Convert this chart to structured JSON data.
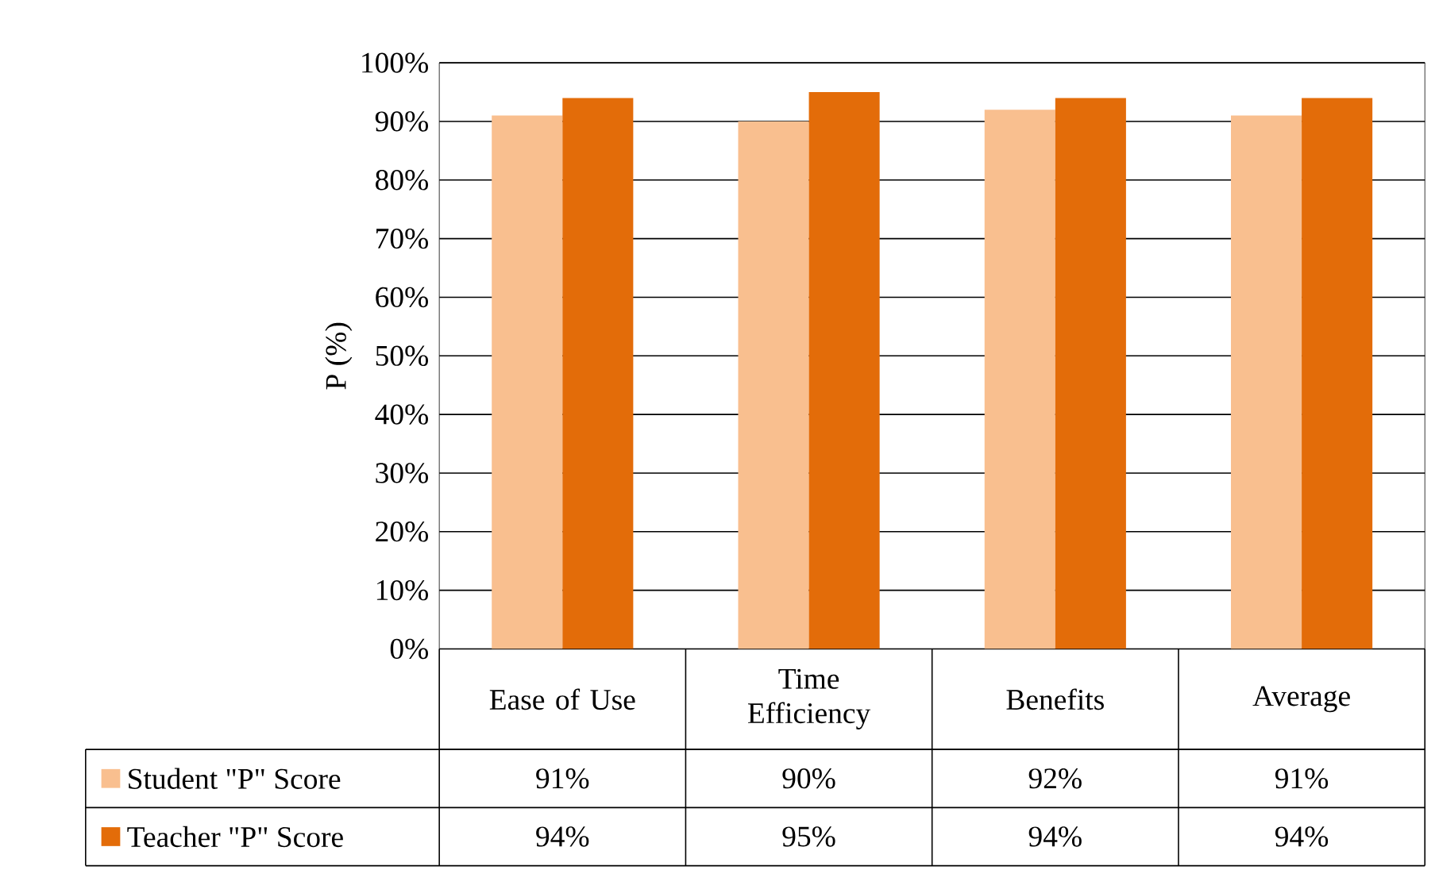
{
  "chart_data": {
    "type": "bar",
    "ylabel": "P (%)",
    "categories": [
      "Ease of Use",
      "Time Efficiency",
      "Benefits",
      "Average"
    ],
    "series": [
      {
        "name": "Student \"P\" Score",
        "color": "#f9bf8f",
        "values": [
          91,
          90,
          92,
          91
        ],
        "value_labels": [
          "91%",
          "90%",
          "92%",
          "91%"
        ]
      },
      {
        "name": "Teacher \"P\" Score",
        "color": "#e36c09",
        "values": [
          94,
          95,
          94,
          94
        ],
        "value_labels": [
          "94%",
          "95%",
          "94%",
          "94%"
        ]
      }
    ],
    "ylim": [
      0,
      100
    ],
    "yticks": [
      {
        "value": 0,
        "label": "0%"
      },
      {
        "value": 10,
        "label": "10%"
      },
      {
        "value": 20,
        "label": "20%"
      },
      {
        "value": 30,
        "label": "30%"
      },
      {
        "value": 40,
        "label": "40%"
      },
      {
        "value": 50,
        "label": "50%"
      },
      {
        "value": 60,
        "label": "60%"
      },
      {
        "value": 70,
        "label": "70%"
      },
      {
        "value": 80,
        "label": "80%"
      },
      {
        "value": 90,
        "label": "90%"
      },
      {
        "value": 100,
        "label": "100%"
      }
    ],
    "grid": "y",
    "legend": "bottom"
  }
}
